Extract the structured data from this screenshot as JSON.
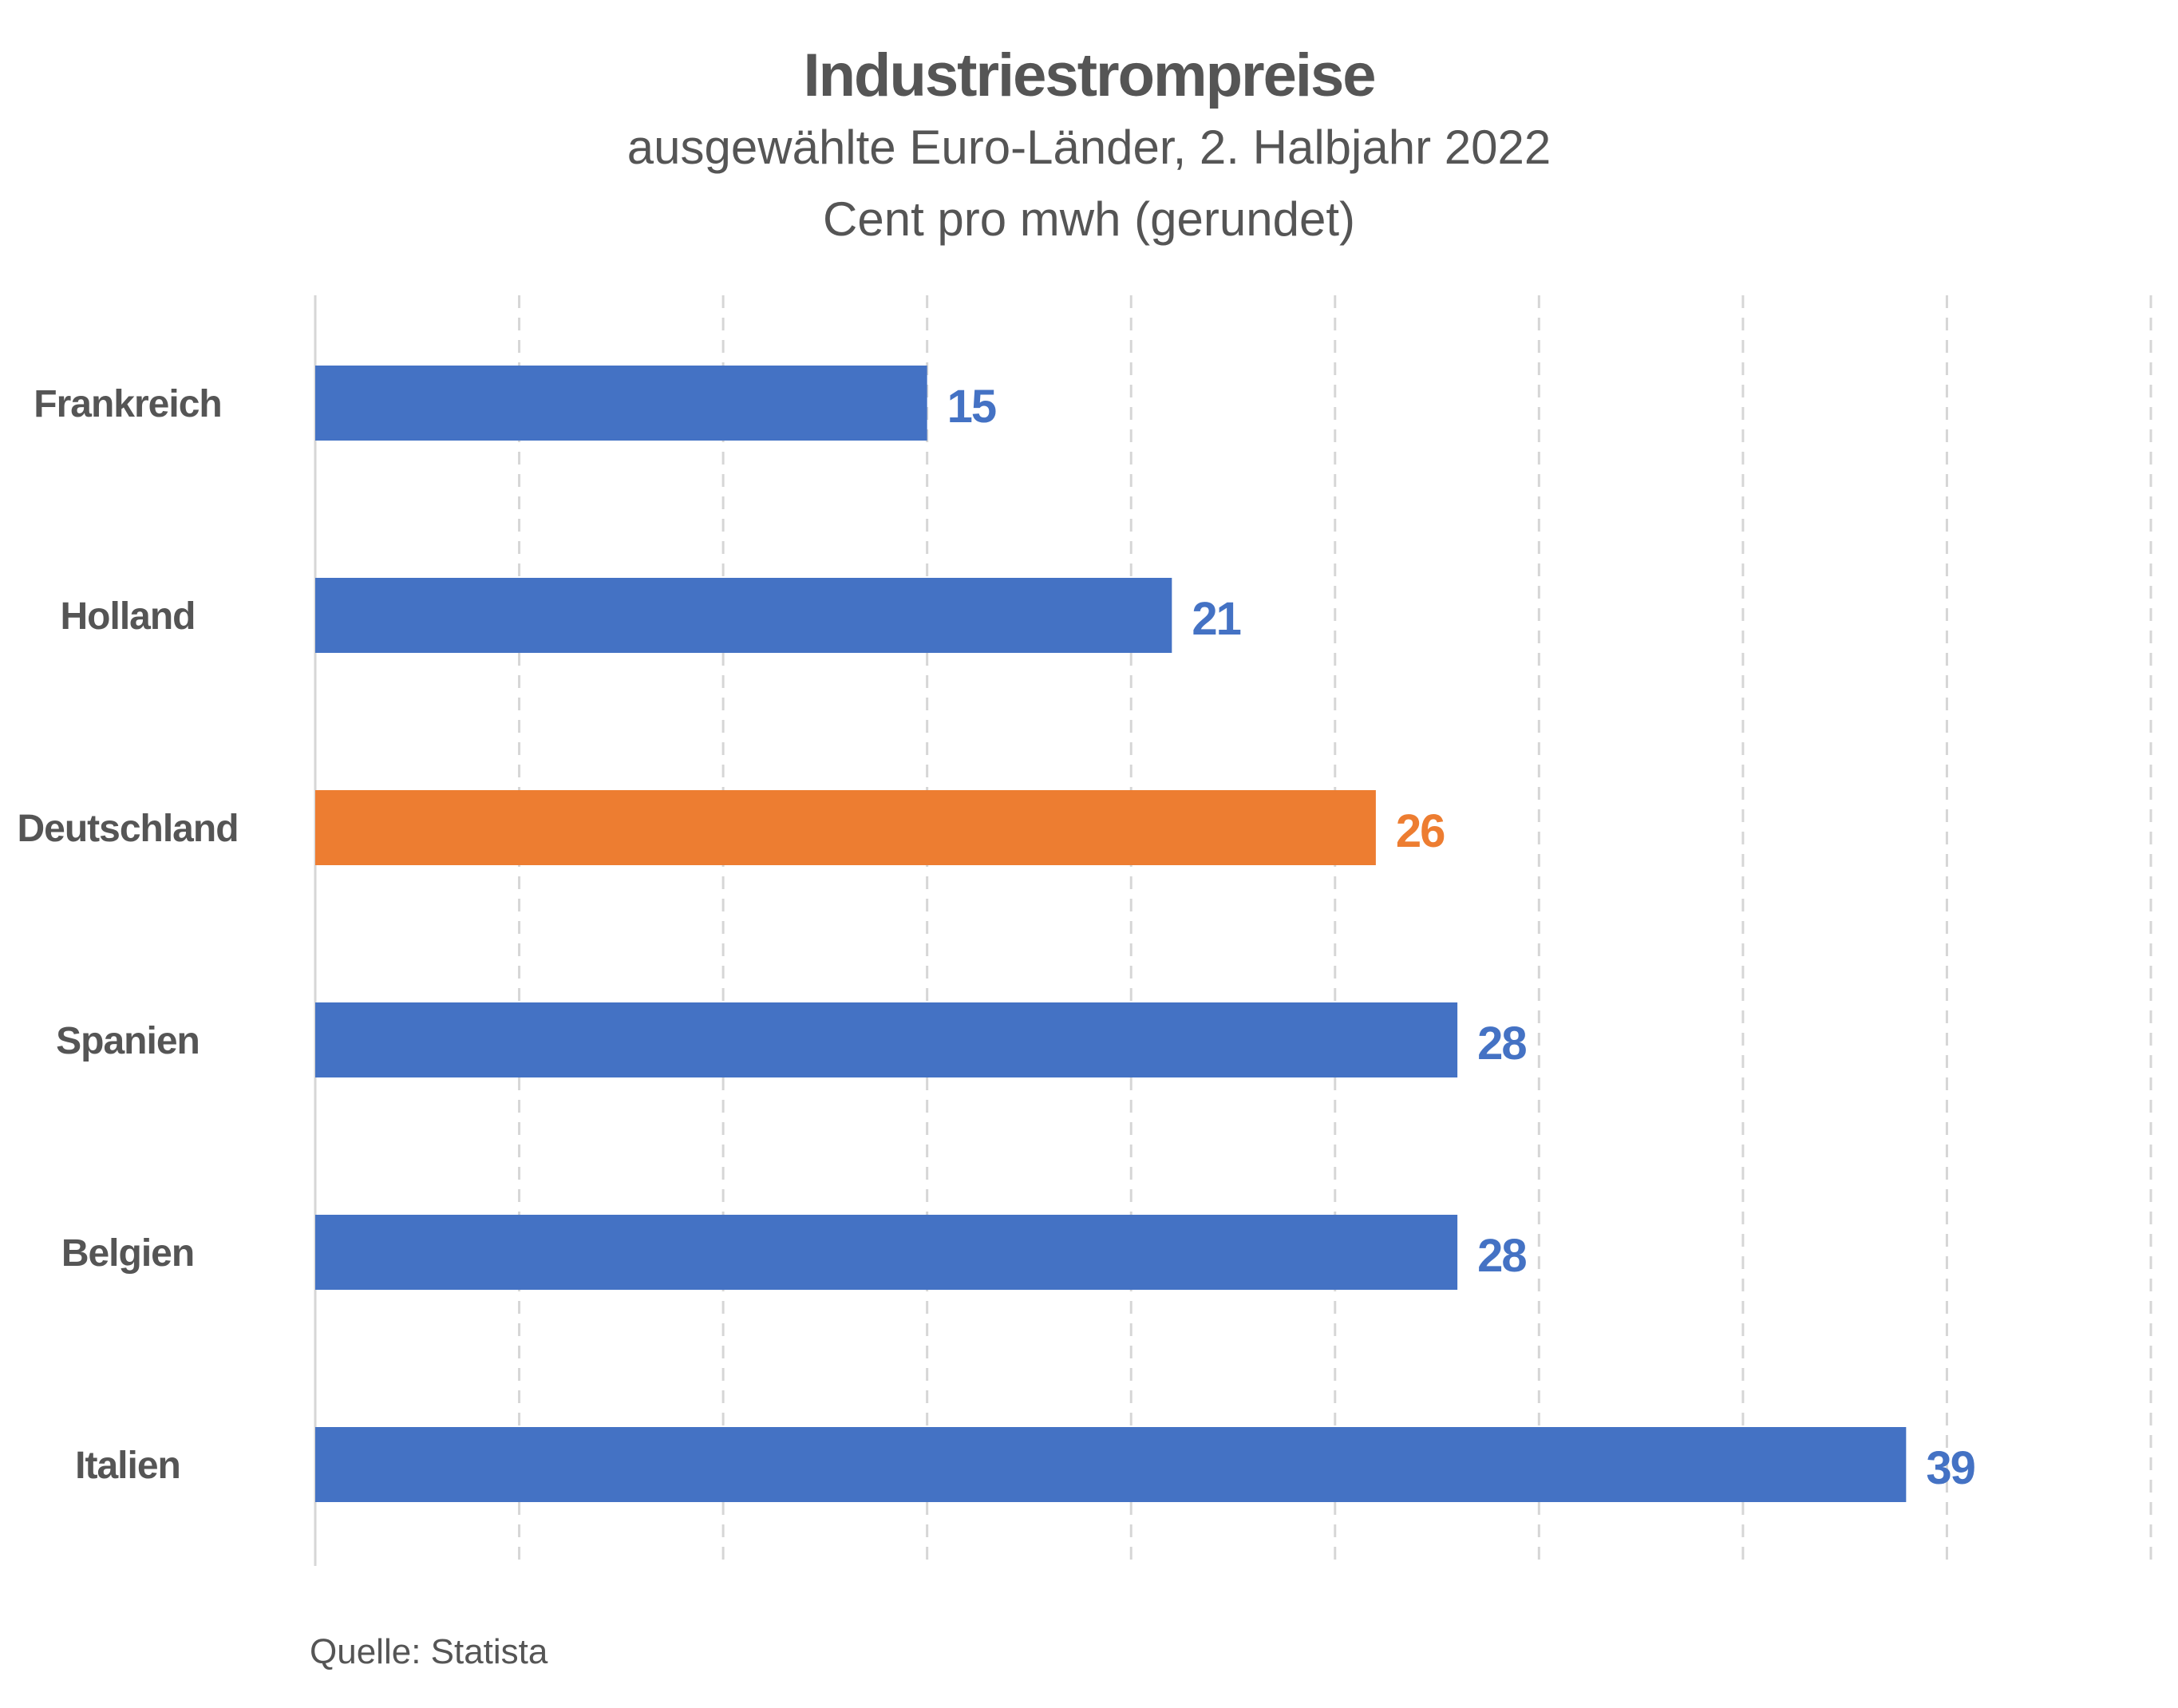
{
  "chart_data": {
    "type": "bar",
    "orientation": "horizontal",
    "title": "Industriestrompreise",
    "subtitle": "ausgewählte Euro-Länder, 2. Halbjahr 2022",
    "unit_label": "Cent pro mwh (gerundet)",
    "categories": [
      "Frankreich",
      "Holland",
      "Deutschland",
      "Spanien",
      "Belgien",
      "Italien"
    ],
    "values": [
      15,
      21,
      26,
      28,
      28,
      39
    ],
    "data_labels": [
      "15",
      "21",
      "26",
      "28",
      "28",
      "39"
    ],
    "colors": [
      "#4472C4",
      "#4472C4",
      "#ED7D31",
      "#4472C4",
      "#4472C4",
      "#4472C4"
    ],
    "xlim": [
      0,
      45
    ],
    "grid": {
      "vertical": true,
      "style": "dashed",
      "step": 5
    },
    "legend": "none",
    "source": "Quelle: Statista"
  }
}
